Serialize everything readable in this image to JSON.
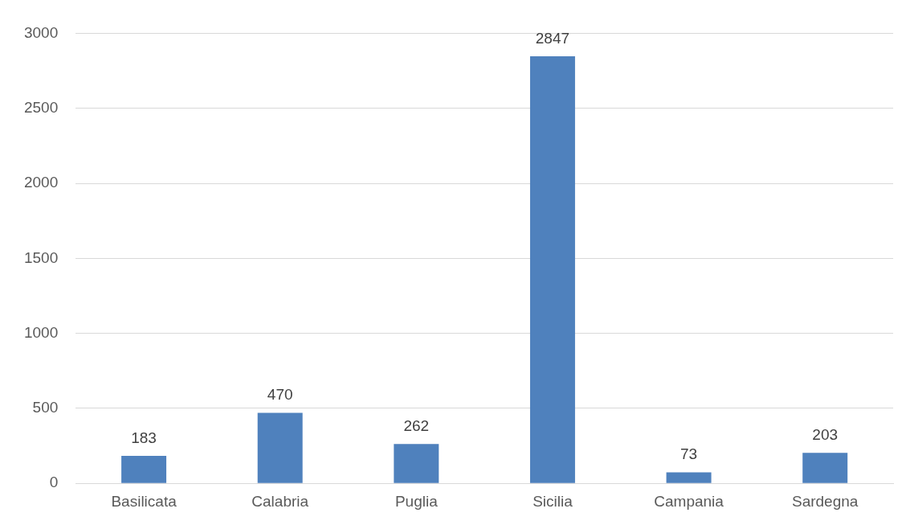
{
  "chart_data": {
    "type": "bar",
    "categories": [
      "Basilicata",
      "Calabria",
      "Puglia",
      "Sicilia",
      "Campania",
      "Sardegna"
    ],
    "values": [
      183,
      470,
      262,
      2847,
      73,
      203
    ],
    "color": "#4f81bd",
    "ylim": [
      0,
      3000
    ],
    "yticks": [
      0,
      500,
      1000,
      1500,
      2000,
      2500,
      3000
    ],
    "grid": "y",
    "data_labels": true
  }
}
